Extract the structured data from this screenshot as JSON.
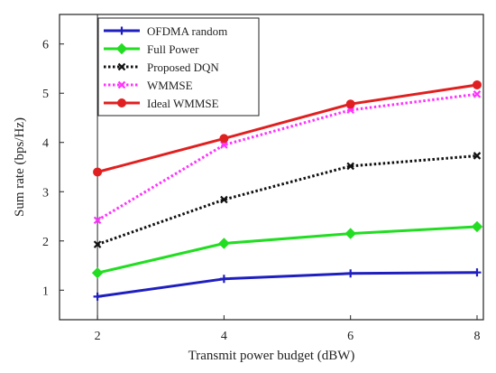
{
  "chart_data": {
    "type": "line",
    "title": "",
    "xlabel": "Transmit power budget (dBW)",
    "ylabel": "Sum rate (bps/Hz)",
    "x": [
      2,
      4,
      6,
      8
    ],
    "xlim": [
      1.4,
      8.1
    ],
    "ylim": [
      0.4,
      6.6
    ],
    "xticks": [
      2,
      4,
      6,
      8
    ],
    "yticks": [
      1,
      2,
      3,
      4,
      5,
      6
    ],
    "grid": "off",
    "legend_position": "top-left",
    "series": [
      {
        "name": "OFDMA random",
        "values": [
          0.87,
          1.23,
          1.34,
          1.36
        ],
        "color": "#1f1fbf",
        "marker": "plus",
        "dash": "solid"
      },
      {
        "name": "Full Power",
        "values": [
          1.35,
          1.95,
          2.15,
          2.29
        ],
        "color": "#22dd22",
        "marker": "diamond",
        "dash": "solid"
      },
      {
        "name": "Proposed DQN",
        "values": [
          1.93,
          2.84,
          3.52,
          3.73
        ],
        "color": "#111111",
        "marker": "x",
        "dash": "dotted"
      },
      {
        "name": "WMMSE",
        "values": [
          2.42,
          3.95,
          4.66,
          4.98
        ],
        "color": "#ff33ff",
        "marker": "x",
        "dash": "dotted"
      },
      {
        "name": "Ideal WMMSE",
        "values": [
          3.4,
          4.08,
          4.78,
          5.17
        ],
        "color": "#e02020",
        "marker": "circle",
        "dash": "solid"
      }
    ]
  }
}
